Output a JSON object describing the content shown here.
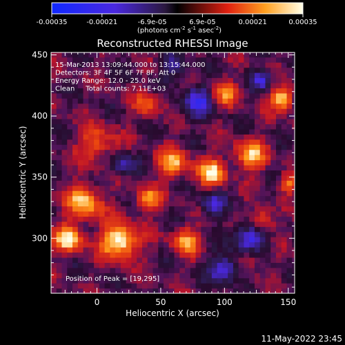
{
  "chart_data": {
    "type": "heatmap",
    "title": "Reconstructed RHESSI Image",
    "xlabel": "Heliocentric X (arcsec)",
    "ylabel": "Heliocentric Y (arcsec)",
    "xlim": [
      -36,
      155
    ],
    "ylim": [
      255,
      452
    ],
    "xticks": [
      "0",
      "50",
      "100",
      "150"
    ],
    "yticks": [
      "300",
      "350",
      "400",
      "450"
    ],
    "colorbar": {
      "range": [
        -0.00035,
        0.00035
      ],
      "ticks": [
        "-0.00035",
        "-0.00021",
        "-6.9e-05",
        "6.9e-05",
        "0.00021",
        "0.00035"
      ],
      "unit_parts": [
        "(photons cm",
        "-2",
        " s",
        "-1",
        " asec",
        "-2",
        ")"
      ]
    },
    "annotation_lines": [
      "15-Mar-2013 13:09:44.000 to 13:15:44.000",
      "Detectors: 3F 4F 5F 6F 7F 8F, Att 0",
      "Energy Range: 12.0 - 25.0 keV",
      "Clean     Total counts: 7.11E+03"
    ],
    "peak_label": "Position of Peak = [19,295]",
    "peak": [
      19,
      295
    ],
    "hotspots": [
      {
        "x": 18,
        "y": 298,
        "w": 18,
        "v": 1.0
      },
      {
        "x": -22,
        "y": 300,
        "w": 14,
        "v": 0.85
      },
      {
        "x": -10,
        "y": 330,
        "w": 18,
        "v": 0.75
      },
      {
        "x": 40,
        "y": 332,
        "w": 12,
        "v": 0.7
      },
      {
        "x": 60,
        "y": 362,
        "w": 16,
        "v": 0.65
      },
      {
        "x": 90,
        "y": 354,
        "w": 14,
        "v": 0.8
      },
      {
        "x": 120,
        "y": 368,
        "w": 16,
        "v": 0.7
      },
      {
        "x": 145,
        "y": 414,
        "w": 12,
        "v": 0.85
      },
      {
        "x": 130,
        "y": 315,
        "w": 12,
        "v": 0.6
      },
      {
        "x": 70,
        "y": 298,
        "w": 14,
        "v": 0.65
      },
      {
        "x": 100,
        "y": 418,
        "w": 14,
        "v": 0.55
      },
      {
        "x": 0,
        "y": 378,
        "w": 18,
        "v": 0.55
      },
      {
        "x": 150,
        "y": 345,
        "w": 10,
        "v": 0.6
      },
      {
        "x": 40,
        "y": 410,
        "w": 14,
        "v": 0.45
      },
      {
        "x": 120,
        "y": 285,
        "w": 12,
        "v": 0.4
      }
    ],
    "coldspots": [
      {
        "x": 120,
        "y": 300,
        "w": 16,
        "v": -0.75
      },
      {
        "x": 100,
        "y": 275,
        "w": 14,
        "v": -0.7
      },
      {
        "x": 80,
        "y": 412,
        "w": 16,
        "v": -0.65
      },
      {
        "x": 130,
        "y": 430,
        "w": 10,
        "v": -0.6
      },
      {
        "x": 20,
        "y": 360,
        "w": 12,
        "v": -0.5
      },
      {
        "x": 90,
        "y": 328,
        "w": 12,
        "v": -0.55
      },
      {
        "x": 60,
        "y": 440,
        "w": 12,
        "v": -0.5
      }
    ]
  },
  "footer": {
    "timestamp": "11-May-2022 23:45"
  }
}
